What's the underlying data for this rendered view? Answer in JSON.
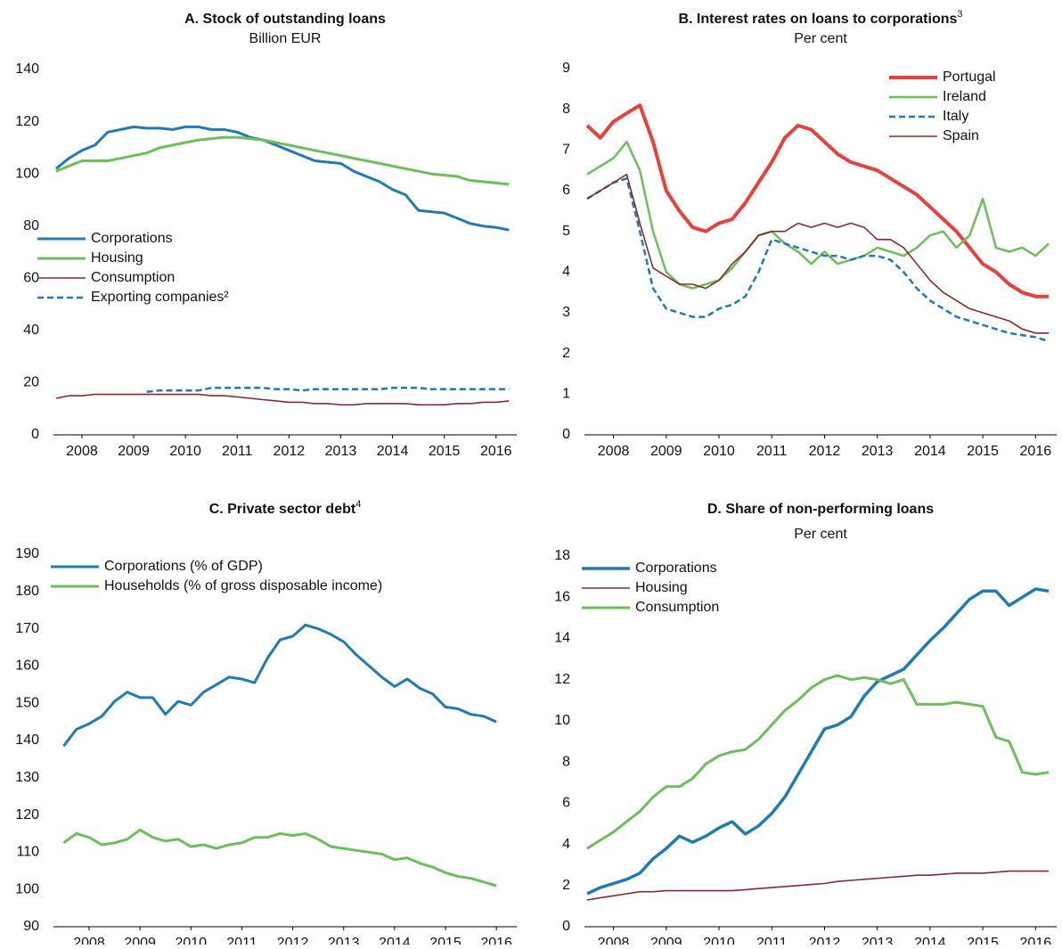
{
  "chart_data": [
    {
      "type": "line",
      "title": "A. Stock of outstanding loans",
      "subtitle": "Billion EUR",
      "x": [
        2008,
        2008.25,
        2008.5,
        2008.75,
        2009,
        2009.25,
        2009.5,
        2009.75,
        2010,
        2010.25,
        2010.5,
        2010.75,
        2011,
        2011.25,
        2011.5,
        2011.75,
        2012,
        2012.25,
        2012.5,
        2012.75,
        2013,
        2013.25,
        2013.5,
        2013.75,
        2014,
        2014.25,
        2014.5,
        2014.75,
        2015,
        2015.25,
        2015.5,
        2015.75,
        2016,
        2016.25,
        2016.5,
        2016.75
      ],
      "xlim": [
        2007.95,
        2016.9
      ],
      "xticks": [
        {
          "value": 2008.5,
          "label": "2008"
        },
        {
          "value": 2009.5,
          "label": "2009"
        },
        {
          "value": 2010.5,
          "label": "2010"
        },
        {
          "value": 2011.5,
          "label": "2011"
        },
        {
          "value": 2012.5,
          "label": "2012"
        },
        {
          "value": 2013.5,
          "label": "2013"
        },
        {
          "value": 2014.5,
          "label": "2014"
        },
        {
          "value": 2015.5,
          "label": "2015"
        },
        {
          "value": 2016.5,
          "label": "2016"
        }
      ],
      "ylim": [
        0,
        140
      ],
      "yticks": [
        0,
        20,
        40,
        60,
        80,
        100,
        120,
        140
      ],
      "legend": "center-left",
      "series": [
        {
          "name": "Corporations",
          "color": "#1f7bb6",
          "line_width": 3,
          "values": [
            102,
            106,
            109,
            111,
            116,
            117,
            118,
            117.5,
            117.5,
            117,
            118,
            118,
            117,
            117,
            116,
            114,
            113,
            111,
            109,
            107,
            105,
            104.5,
            104,
            101,
            99,
            97,
            94,
            92,
            86,
            85.5,
            85,
            83,
            81,
            80,
            79.5,
            78.5
          ]
        },
        {
          "name": "Housing",
          "color": "#6cbf5a",
          "line_width": 3,
          "values": [
            101,
            103,
            105,
            105,
            105,
            106,
            107,
            108,
            110,
            111,
            112,
            113,
            113.5,
            114,
            114,
            113.5,
            113,
            112,
            111,
            110,
            109,
            108,
            107,
            106,
            105,
            104,
            103,
            102,
            101,
            100,
            99.5,
            99,
            97.5,
            97,
            96.5,
            96
          ]
        },
        {
          "name": "Consumption",
          "color": "#8b2a2a",
          "line_width": 1.6,
          "values": [
            14,
            15,
            15,
            15.5,
            15.5,
            15.5,
            15.5,
            15.5,
            15.5,
            15.5,
            15.5,
            15.5,
            15,
            15,
            14.5,
            14,
            13.5,
            13,
            12.5,
            12.5,
            12,
            12,
            11.5,
            11.5,
            12,
            12,
            12,
            12,
            11.5,
            11.5,
            11.5,
            12,
            12,
            12.5,
            12.5,
            13
          ]
        },
        {
          "name": "Exporting companies²",
          "color": "#1f7bb6",
          "line_width": 2.5,
          "line_style": "dashed",
          "values": [
            null,
            null,
            null,
            null,
            null,
            null,
            null,
            16.5,
            17,
            17,
            17,
            17,
            18,
            18,
            18,
            18,
            18,
            17.5,
            17.5,
            17,
            17.5,
            17.5,
            17.5,
            17.5,
            17.5,
            17.5,
            18,
            18,
            18,
            17.5,
            17.5,
            17.5,
            17.5,
            17.5,
            17.5,
            17.5
          ]
        }
      ]
    },
    {
      "type": "line",
      "title": "B. Interest rates on loans to corporations",
      "title_note": "3",
      "subtitle": "Per cent",
      "x": [
        2008,
        2008.25,
        2008.5,
        2008.75,
        2009,
        2009.25,
        2009.5,
        2009.75,
        2010,
        2010.25,
        2010.5,
        2010.75,
        2011,
        2011.25,
        2011.5,
        2011.75,
        2012,
        2012.25,
        2012.5,
        2012.75,
        2013,
        2013.25,
        2013.5,
        2013.75,
        2014,
        2014.25,
        2014.5,
        2014.75,
        2015,
        2015.25,
        2015.5,
        2015.75,
        2016,
        2016.25,
        2016.5,
        2016.75
      ],
      "xlim": [
        2007.95,
        2016.9
      ],
      "xticks": [
        {
          "value": 2008.5,
          "label": "2008"
        },
        {
          "value": 2009.5,
          "label": "2009"
        },
        {
          "value": 2010.5,
          "label": "2010"
        },
        {
          "value": 2011.5,
          "label": "2011"
        },
        {
          "value": 2012.5,
          "label": "2012"
        },
        {
          "value": 2013.5,
          "label": "2013"
        },
        {
          "value": 2014.5,
          "label": "2014"
        },
        {
          "value": 2015.5,
          "label": "2015"
        },
        {
          "value": 2016.5,
          "label": "2016"
        }
      ],
      "ylim": [
        0,
        9
      ],
      "yticks": [
        0,
        1,
        2,
        3,
        4,
        5,
        6,
        7,
        8,
        9
      ],
      "legend": "upper-right",
      "series": [
        {
          "name": "Portugal",
          "color": "#e8403b",
          "line_width": 4,
          "values": [
            7.6,
            7.3,
            7.7,
            7.9,
            8.1,
            7.2,
            6,
            5.5,
            5.1,
            5,
            5.2,
            5.3,
            5.7,
            6.2,
            6.7,
            7.3,
            7.6,
            7.5,
            7.2,
            6.9,
            6.7,
            6.6,
            6.5,
            6.3,
            6.1,
            5.9,
            5.6,
            5.3,
            5,
            4.6,
            4.2,
            4,
            3.7,
            3.5,
            3.4,
            3.4
          ]
        },
        {
          "name": "Ireland",
          "color": "#6cbf5a",
          "line_width": 2.5,
          "values": [
            6.4,
            6.6,
            6.8,
            7.2,
            6.5,
            5,
            4,
            3.7,
            3.6,
            3.7,
            3.8,
            4.1,
            4.5,
            4.9,
            5.0,
            4.7,
            4.5,
            4.2,
            4.5,
            4.2,
            4.3,
            4.4,
            4.6,
            4.5,
            4.4,
            4.6,
            4.9,
            5.0,
            4.6,
            4.9,
            5.8,
            4.6,
            4.5,
            4.6,
            4.4,
            4.7
          ]
        },
        {
          "name": "Italy",
          "color": "#1f7bb6",
          "line_width": 2.5,
          "line_style": "dashed",
          "values": [
            5.8,
            6,
            6.2,
            6.3,
            5,
            3.6,
            3.1,
            3.0,
            2.9,
            2.9,
            3.1,
            3.2,
            3.4,
            4,
            4.8,
            4.7,
            4.6,
            4.5,
            4.4,
            4.4,
            4.3,
            4.4,
            4.4,
            4.3,
            4.0,
            3.6,
            3.3,
            3.1,
            2.9,
            2.8,
            2.7,
            2.6,
            2.5,
            2.45,
            2.4,
            2.3
          ]
        },
        {
          "name": "Spain",
          "color": "#8b2a2a",
          "line_width": 1.6,
          "values": [
            5.8,
            6.0,
            6.2,
            6.4,
            5.2,
            4.1,
            3.9,
            3.7,
            3.7,
            3.6,
            3.8,
            4.2,
            4.5,
            4.9,
            5.0,
            5.0,
            5.2,
            5.1,
            5.2,
            5.1,
            5.2,
            5.1,
            4.8,
            4.8,
            4.6,
            4.2,
            3.8,
            3.5,
            3.3,
            3.1,
            3.0,
            2.9,
            2.8,
            2.6,
            2.5,
            2.5
          ]
        }
      ]
    },
    {
      "type": "line",
      "title": "C. Private sector debt",
      "title_note": "4",
      "x": [
        2008,
        2008.25,
        2008.5,
        2008.75,
        2009,
        2009.25,
        2009.5,
        2009.75,
        2010,
        2010.25,
        2010.5,
        2010.75,
        2011,
        2011.25,
        2011.5,
        2011.75,
        2012,
        2012.25,
        2012.5,
        2012.75,
        2013,
        2013.25,
        2013.5,
        2013.75,
        2014,
        2014.25,
        2014.5,
        2014.75,
        2015,
        2015.25,
        2015.5,
        2015.75,
        2016,
        2016.25,
        2016.5
      ],
      "xlim": [
        2007.8,
        2016.9
      ],
      "xticks": [
        {
          "value": 2008.5,
          "label": "2008"
        },
        {
          "value": 2009.5,
          "label": "2009"
        },
        {
          "value": 2010.5,
          "label": "2010"
        },
        {
          "value": 2011.5,
          "label": "2011"
        },
        {
          "value": 2012.5,
          "label": "2012"
        },
        {
          "value": 2013.5,
          "label": "2013"
        },
        {
          "value": 2014.5,
          "label": "2014"
        },
        {
          "value": 2015.5,
          "label": "2015"
        },
        {
          "value": 2016.5,
          "label": "2016"
        }
      ],
      "ylim": [
        90,
        190
      ],
      "yticks": [
        90,
        100,
        110,
        120,
        130,
        140,
        150,
        160,
        170,
        180,
        190
      ],
      "legend": "upper-left",
      "series": [
        {
          "name": "Corporations (% of GDP)",
          "color": "#1f7bb6",
          "line_width": 3,
          "values": [
            138.5,
            143,
            144.5,
            146.5,
            150.5,
            153,
            151.5,
            151.5,
            147,
            150.5,
            149.5,
            153,
            155,
            157,
            156.5,
            155.5,
            162,
            167,
            168,
            171,
            170,
            168.5,
            166.5,
            163,
            160,
            157,
            154.5,
            156.5,
            154,
            152.5,
            149,
            148.5,
            147,
            146.5,
            145
          ]
        },
        {
          "name": "Households (% of gross disposable income)",
          "color": "#6cbf5a",
          "line_width": 3,
          "values": [
            112.5,
            115,
            114,
            112,
            112.5,
            113.5,
            116,
            114,
            113,
            113.5,
            111.5,
            112,
            111,
            112,
            112.5,
            114,
            114,
            115,
            114.5,
            115,
            113.5,
            111.5,
            111,
            110.5,
            110,
            109.5,
            108,
            108.5,
            107,
            106,
            104.5,
            103.5,
            103,
            102,
            101
          ]
        }
      ]
    },
    {
      "type": "line",
      "title": "D. Share of non-performing loans",
      "subtitle": "Per cent",
      "x": [
        2008,
        2008.25,
        2008.5,
        2008.75,
        2009,
        2009.25,
        2009.5,
        2009.75,
        2010,
        2010.25,
        2010.5,
        2010.75,
        2011,
        2011.25,
        2011.5,
        2011.75,
        2012,
        2012.25,
        2012.5,
        2012.75,
        2013,
        2013.25,
        2013.5,
        2013.75,
        2014,
        2014.25,
        2014.5,
        2014.75,
        2015,
        2015.25,
        2015.5,
        2015.75,
        2016,
        2016.25,
        2016.5,
        2016.75
      ],
      "xlim": [
        2007.95,
        2016.9
      ],
      "xticks": [
        {
          "value": 2008.5,
          "label": "2008"
        },
        {
          "value": 2009.5,
          "label": "2009"
        },
        {
          "value": 2010.5,
          "label": "2010"
        },
        {
          "value": 2011.5,
          "label": "2011"
        },
        {
          "value": 2012.5,
          "label": "2012"
        },
        {
          "value": 2013.5,
          "label": "2013"
        },
        {
          "value": 2014.5,
          "label": "2014"
        },
        {
          "value": 2015.5,
          "label": "2015"
        },
        {
          "value": 2016.5,
          "label": "2016"
        }
      ],
      "ylim": [
        0,
        18
      ],
      "yticks": [
        0,
        2,
        4,
        6,
        8,
        10,
        12,
        14,
        16,
        18
      ],
      "legend": "upper-left",
      "series": [
        {
          "name": "Corporations",
          "color": "#1f7bb6",
          "line_width": 3.5,
          "values": [
            1.6,
            1.9,
            2.1,
            2.3,
            2.6,
            3.3,
            3.8,
            4.4,
            4.1,
            4.4,
            4.8,
            5.1,
            4.5,
            4.9,
            5.5,
            6.3,
            7.4,
            8.5,
            9.6,
            9.8,
            10.2,
            11.2,
            11.9,
            12.2,
            12.5,
            13.2,
            13.9,
            14.5,
            15.2,
            15.9,
            16.3,
            16.3,
            15.6,
            16,
            16.4,
            16.3
          ]
        },
        {
          "name": "Housing",
          "color": "#8b2a2a",
          "line_width": 1.6,
          "values": [
            1.3,
            1.4,
            1.5,
            1.6,
            1.7,
            1.7,
            1.75,
            1.75,
            1.75,
            1.75,
            1.75,
            1.75,
            1.8,
            1.85,
            1.9,
            1.95,
            2.0,
            2.05,
            2.1,
            2.2,
            2.25,
            2.3,
            2.35,
            2.4,
            2.45,
            2.5,
            2.5,
            2.55,
            2.6,
            2.6,
            2.6,
            2.65,
            2.7,
            2.7,
            2.7,
            2.7
          ]
        },
        {
          "name": "Consumption",
          "color": "#6cbf5a",
          "line_width": 3,
          "values": [
            3.8,
            4.2,
            4.6,
            5.1,
            5.6,
            6.3,
            6.8,
            6.8,
            7.2,
            7.9,
            8.3,
            8.5,
            8.6,
            9.1,
            9.8,
            10.5,
            11,
            11.6,
            12.0,
            12.2,
            12.0,
            12.1,
            12.0,
            11.8,
            12.0,
            10.8,
            10.8,
            10.8,
            10.9,
            10.8,
            10.7,
            9.2,
            9.0,
            7.5,
            7.4,
            7.5
          ]
        }
      ]
    }
  ]
}
